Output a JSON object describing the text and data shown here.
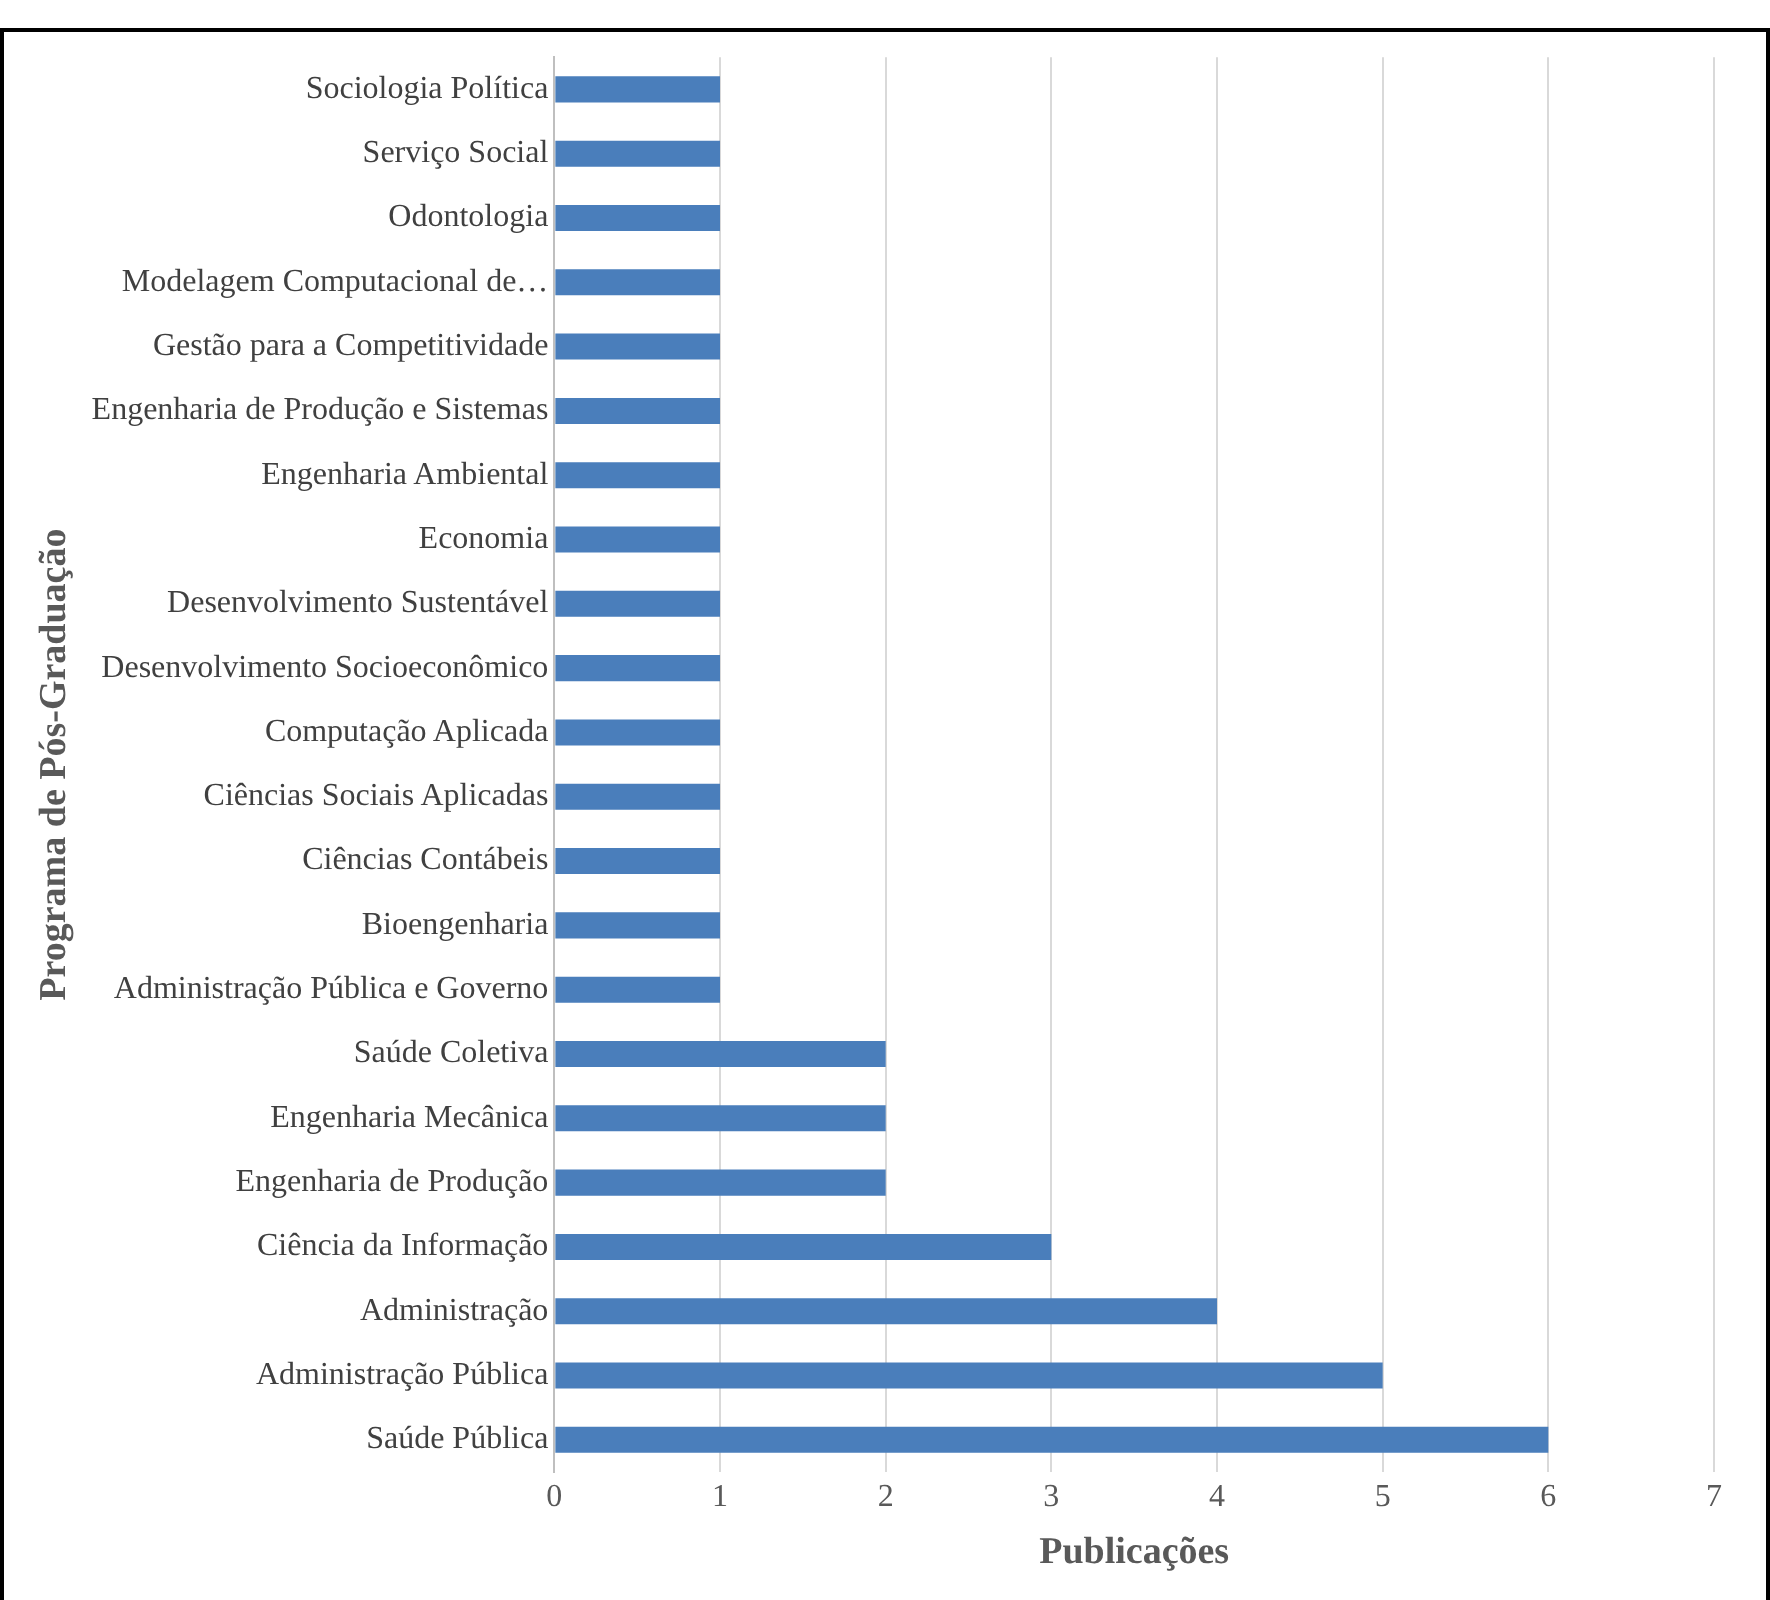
{
  "chart_data": {
    "type": "bar",
    "orientation": "horizontal",
    "xlabel": "Publicações",
    "ylabel": "Programa de Pós-Graduação",
    "categories": [
      "Sociologia Política",
      "Serviço Social",
      "Odontologia",
      "Modelagem Computacional de…",
      "Gestão para a Competitividade",
      "Engenharia de Produção e Sistemas",
      "Engenharia Ambiental",
      "Economia",
      "Desenvolvimento Sustentável",
      "Desenvolvimento Socioeconômico",
      "Computação Aplicada",
      "Ciências Sociais Aplicadas",
      "Ciências Contábeis",
      "Bioengenharia",
      "Administração Pública e Governo",
      "Saúde Coletiva",
      "Engenharia Mecânica",
      "Engenharia de Produção",
      "Ciência da Informação",
      "Administração",
      "Administração Pública",
      "Saúde Pública"
    ],
    "values": [
      1,
      1,
      1,
      1,
      1,
      1,
      1,
      1,
      1,
      1,
      1,
      1,
      1,
      1,
      1,
      2,
      2,
      2,
      3,
      4,
      5,
      6
    ],
    "color": "#4a7ebb",
    "xlim": [
      0,
      7
    ],
    "xticks": [
      0,
      1,
      2,
      3,
      4,
      5,
      6,
      7
    ],
    "grid": "x",
    "legend": false
  }
}
